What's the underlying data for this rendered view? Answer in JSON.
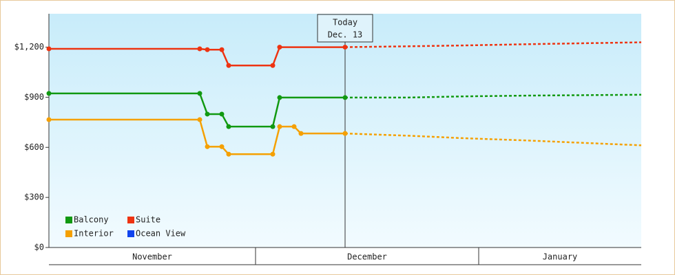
{
  "chart_data": {
    "type": "line",
    "ylim": [
      0,
      1400
    ],
    "yticks": [
      {
        "value": 0,
        "label": "$0"
      },
      {
        "value": 300,
        "label": "$300"
      },
      {
        "value": 600,
        "label": "$600"
      },
      {
        "value": 900,
        "label": "$900"
      },
      {
        "value": 1200,
        "label": "$1,200"
      }
    ],
    "xlim": [
      0,
      86
    ],
    "categories": [
      "November",
      "December",
      "January"
    ],
    "category_edges": [
      0,
      30,
      62.4,
      86
    ],
    "annotation": {
      "lines": [
        "Today",
        "Dec. 13"
      ],
      "x": 43
    },
    "series": [
      {
        "name": "Balcony",
        "color": "#119911",
        "x": [
          0,
          21.9,
          23,
          25.1,
          26.1,
          32.5,
          33.5,
          43
        ],
        "values": [
          923,
          923,
          799,
          799,
          724,
          724,
          898,
          898
        ],
        "forecast_x": [
          43,
          52,
          60,
          70,
          86
        ],
        "forecast_values": [
          898,
          898,
          905,
          910,
          915
        ]
      },
      {
        "name": "Suite",
        "color": "#ee3311",
        "x": [
          0,
          21.9,
          23,
          25.1,
          26.1,
          32.5,
          33.5,
          43
        ],
        "values": [
          1190,
          1190,
          1185,
          1185,
          1090,
          1090,
          1200,
          1200
        ],
        "forecast_x": [
          43,
          52,
          60,
          70,
          86
        ],
        "forecast_values": [
          1200,
          1205,
          1210,
          1218,
          1229
        ]
      },
      {
        "name": "Interior",
        "color": "#f5a000",
        "x": [
          0,
          21.9,
          23,
          25.1,
          26.1,
          32.5,
          33.5,
          35.6,
          36.6,
          43
        ],
        "values": [
          766,
          766,
          604,
          604,
          559,
          559,
          724,
          724,
          683,
          683
        ],
        "forecast_x": [
          43,
          52,
          60,
          70,
          86
        ],
        "forecast_values": [
          683,
          670,
          655,
          640,
          612
        ]
      },
      {
        "name": "Ocean View",
        "color": "#1144ee",
        "x": [],
        "values": [],
        "forecast_x": [],
        "forecast_values": []
      }
    ],
    "legend": "lower-left"
  }
}
